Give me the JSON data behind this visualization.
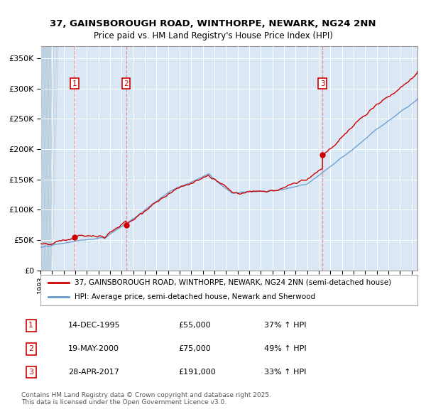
{
  "title_line1": "37, GAINSBOROUGH ROAD, WINTHORPE, NEWARK, NG24 2NN",
  "title_line2": "Price paid vs. HM Land Registry's House Price Index (HPI)",
  "red_label": "37, GAINSBOROUGH ROAD, WINTHORPE, NEWARK, NG24 2NN (semi-detached house)",
  "blue_label": "HPI: Average price, semi-detached house, Newark and Sherwood",
  "transactions": [
    {
      "num": 1,
      "date": "14-DEC-1995",
      "year": 1995.96,
      "price": 55000,
      "hpi_pct": "37% ↑ HPI"
    },
    {
      "num": 2,
      "date": "19-MAY-2000",
      "year": 2000.38,
      "price": 75000,
      "hpi_pct": "49% ↑ HPI"
    },
    {
      "num": 3,
      "date": "28-APR-2017",
      "year": 2017.32,
      "price": 191000,
      "hpi_pct": "33% ↑ HPI"
    }
  ],
  "ylim": [
    0,
    370000
  ],
  "yticks": [
    0,
    50000,
    100000,
    150000,
    200000,
    250000,
    300000,
    350000
  ],
  "xmin": 1993.0,
  "xmax": 2025.5,
  "plot_bg": "#dae8f5",
  "grid_color": "#ffffff",
  "red_color": "#cc0000",
  "blue_color": "#6699cc",
  "footnote": "Contains HM Land Registry data © Crown copyright and database right 2025.\nThis data is licensed under the Open Government Licence v3.0."
}
